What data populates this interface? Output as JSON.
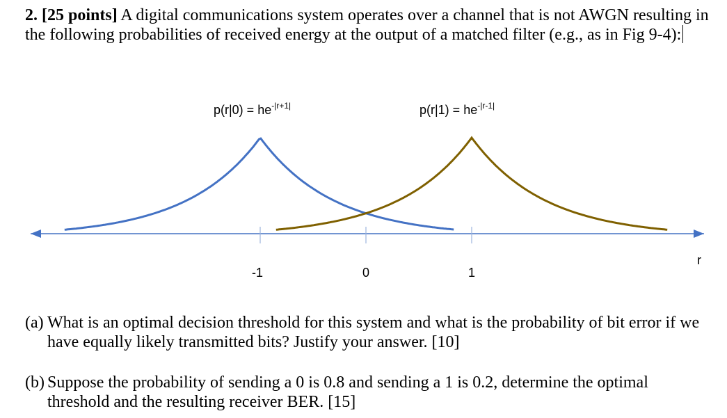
{
  "problem": {
    "number": "2.",
    "points": "[25 points]",
    "statement": "A digital communications system operates over a channel that is not AWGN resulting in the following probabilities of received energy at the output of a matched filter (e.g., as in Fig 9-4):"
  },
  "figure": {
    "pdf0_label": "p(r|0) = he",
    "pdf0_exp": "-|r+1|",
    "pdf1_label": "p(r|1) = he",
    "pdf1_exp": "-|r-1|",
    "axis_label": "r",
    "ticks": [
      "-1",
      "0",
      "1"
    ],
    "colors": {
      "pdf0": "#4472C4",
      "pdf1": "#7F6000",
      "axis": "#4472C4"
    }
  },
  "parts": [
    {
      "label": "(a)",
      "text": "What is an optimal decision threshold for this system and what is the probability of bit error if we have equally likely transmitted bits?  Justify your answer. [10]"
    },
    {
      "label": "(b)",
      "text": "Suppose the probability of sending a 0 is 0.8 and sending a 1 is 0.2, determine the optimal threshold and the resulting receiver BER. [15]"
    }
  ]
}
